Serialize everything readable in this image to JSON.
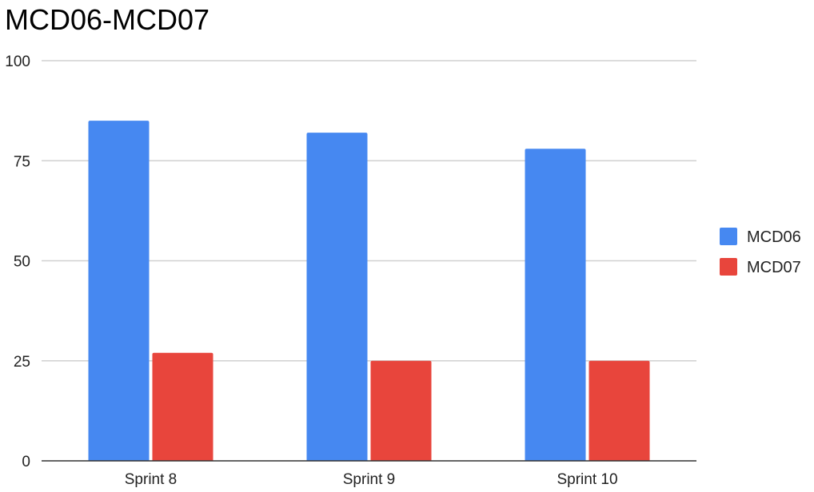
{
  "chart_data": {
    "type": "bar",
    "title": "MCD06-MCD07",
    "categories": [
      "Sprint 8",
      "Sprint 9",
      "Sprint 10"
    ],
    "series": [
      {
        "name": "MCD06",
        "values": [
          85,
          82,
          78
        ],
        "color": "#4688f1"
      },
      {
        "name": "MCD07",
        "values": [
          27,
          25,
          25
        ],
        "color": "#e8453c"
      }
    ],
    "ylim": [
      0,
      100
    ],
    "yticks": [
      0,
      25,
      50,
      75,
      100
    ],
    "grid": true,
    "legend_position": "right"
  }
}
